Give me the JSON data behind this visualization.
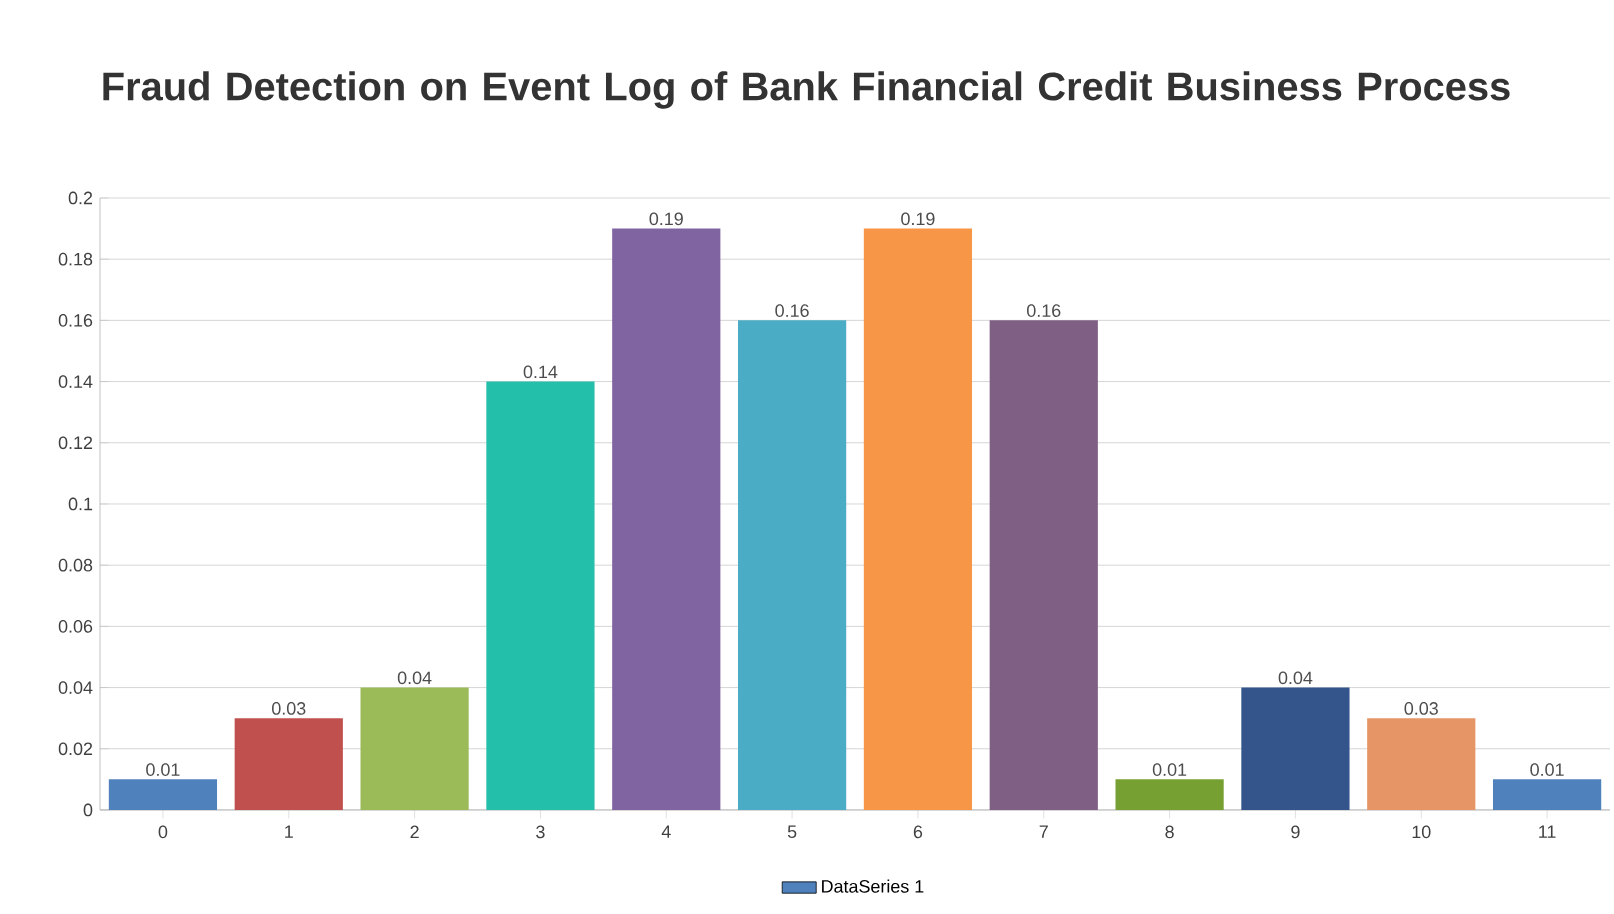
{
  "chart_data": {
    "type": "bar",
    "title": "Fraud Detection on Event Log of Bank Financial Credit Business Process",
    "categories": [
      "0",
      "1",
      "2",
      "3",
      "4",
      "5",
      "6",
      "7",
      "8",
      "9",
      "10",
      "11"
    ],
    "series": [
      {
        "name": "DataSeries 1",
        "color": "#4f81bc",
        "values": [
          0.01,
          0.03,
          0.04,
          0.14,
          0.19,
          0.16,
          0.19,
          0.16,
          0.01,
          0.04,
          0.03,
          0.01
        ],
        "colors": [
          "#4f81bc",
          "#c0504e",
          "#9bbb58",
          "#23bfaa",
          "#8064a1",
          "#4aacc5",
          "#f79647",
          "#7f6084",
          "#77a033",
          "#33558b",
          "#e59566",
          "#4f81bc"
        ]
      }
    ],
    "ylim": [
      0,
      0.2
    ],
    "yticks": [
      0,
      0.02,
      0.04,
      0.06,
      0.08,
      0.1,
      0.12,
      0.14,
      0.16,
      0.18,
      0.2
    ],
    "grid": "y",
    "data_labels": true,
    "legend": "bottom"
  }
}
